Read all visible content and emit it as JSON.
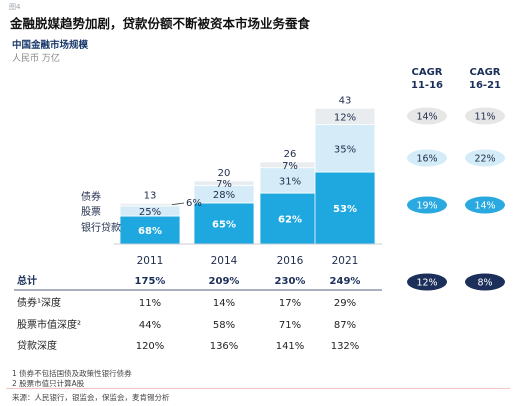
{
  "figure_number": "图4",
  "headline": "金融脱媒趋势加剧，贷款份额不断被资本市场业务蚕食",
  "subtitle": "中国金融市场规模",
  "unit": "人民币 万亿",
  "colors": {
    "loans": "#1ea8df",
    "stocks": "#d5ecf8",
    "bonds": "#e9ecef",
    "bar_label": "#ffffff",
    "navy": "#1a2f5a",
    "bubble_light": "#e6e6e6",
    "bubble_mid": "#d4ecf8",
    "bubble_blue": "#29a9e0",
    "bubble_dark": "#1c2f5a",
    "footer_line": "#f2c4c4"
  },
  "chart_data": {
    "type": "bar",
    "stacked": true,
    "categories": [
      "2011",
      "2014",
      "2016",
      "2021"
    ],
    "totals": [
      13,
      20,
      26,
      43
    ],
    "ylim": [
      0,
      45
    ],
    "series": [
      {
        "name": "银行贷款",
        "values": [
          8.84,
          13.0,
          16.12,
          22.79
        ],
        "labels": [
          "68%",
          "65%",
          "62%",
          "53%"
        ]
      },
      {
        "name": "股票",
        "values": [
          3.25,
          5.6,
          8.06,
          15.05
        ],
        "labels": [
          "25%",
          "28%",
          "31%",
          "35%"
        ]
      },
      {
        "name": "债券",
        "values": [
          0.78,
          1.4,
          1.82,
          5.16
        ],
        "labels": [
          "6%",
          "7%",
          "7%",
          "12%"
        ]
      }
    ],
    "cagr": {
      "headers": [
        "CAGR\n11-16",
        "CAGR\n16-21"
      ],
      "rows": [
        {
          "series": "债券",
          "values": [
            "14%",
            "11%"
          ]
        },
        {
          "series": "股票",
          "values": [
            "16%",
            "22%"
          ]
        },
        {
          "series": "银行贷款",
          "values": [
            "19%",
            "14%"
          ]
        },
        {
          "series": "总计",
          "values": [
            "12%",
            "8%"
          ]
        }
      ]
    },
    "table": {
      "rows": [
        {
          "label": "总计",
          "values": [
            "175%",
            "209%",
            "230%",
            "249%"
          ]
        },
        {
          "label": "债券¹深度",
          "values": [
            "11%",
            "14%",
            "17%",
            "29%"
          ]
        },
        {
          "label": "股票市值深度²",
          "values": [
            "44%",
            "58%",
            "71%",
            "87%"
          ]
        },
        {
          "label": "贷款深度",
          "values": [
            "120%",
            "136%",
            "141%",
            "132%"
          ]
        }
      ]
    }
  },
  "footnotes": [
    "1 债券不包括国债及政策性银行债券",
    "2 股票市值只计算A股",
    "来源：人民银行，银监会，保监会，麦肯锡分析"
  ]
}
